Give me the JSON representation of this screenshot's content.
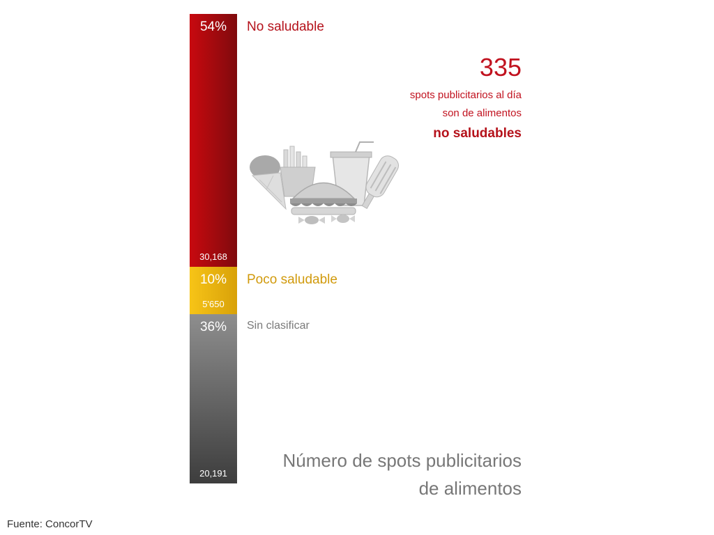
{
  "chart_data": {
    "type": "bar",
    "stacked": true,
    "orientation": "vertical",
    "categories": [
      "No saludable",
      "Poco saludable",
      "Sin clasificar"
    ],
    "percent_labels": [
      "54%",
      "10%",
      "36%"
    ],
    "percents": [
      54,
      10,
      36
    ],
    "count_labels": [
      "30,168",
      "5'650",
      "20,191"
    ],
    "values": [
      30168,
      5650,
      20191
    ],
    "colors": [
      "#b30d14",
      "#e8b10e",
      "#8a8a8a"
    ],
    "label_colors": [
      "#b5121b",
      "#d19a0c",
      "#7a7a7a"
    ],
    "subtitle_lines": [
      "Número de spots publicitarios",
      "de alimentos"
    ],
    "legend": "none",
    "grid": false
  },
  "headline": {
    "number": "335",
    "lines": [
      "spots publicitarios al día",
      "son de alimentos"
    ],
    "emphasis": "no saludables"
  },
  "illustration": {
    "icon": "junk-food-icon"
  },
  "source": "Fuente: ConcorTV"
}
